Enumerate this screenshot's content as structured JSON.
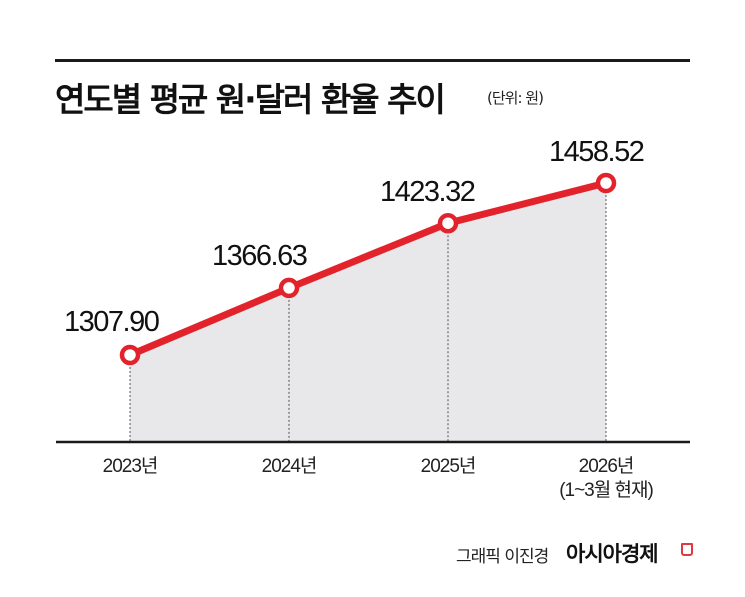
{
  "header": {
    "title": "연도별 평균 원·달러 환율 추이",
    "unit": "(단위: 원)"
  },
  "footer": {
    "credit": "그래픽 이진경",
    "brand": "아시아경제",
    "brand_mark_color": "#e0393e"
  },
  "colors": {
    "line": "#e3232b",
    "fill": "#e8e8ea",
    "axis": "#1a1a1a",
    "marker_fill": "#ffffff"
  },
  "labels": {
    "values": [
      "1307.90",
      "1366.63",
      "1423.32",
      "1458.52"
    ],
    "x": [
      {
        "line1": "2023년",
        "line2": ""
      },
      {
        "line1": "2024년",
        "line2": ""
      },
      {
        "line1": "2025년",
        "line2": ""
      },
      {
        "line1": "2026년",
        "line2": "(1~3월 현재)"
      }
    ]
  },
  "chart_data": {
    "type": "line",
    "title": "연도별 평균 원·달러 환율 추이",
    "subtitle": "(단위: 원)",
    "categories": [
      "2023년",
      "2024년",
      "2025년",
      "2026년 (1~3월 현재)"
    ],
    "series": [
      {
        "name": "평균 원·달러 환율",
        "values": [
          1307.9,
          1366.63,
          1423.32,
          1458.52
        ]
      }
    ],
    "xlabel": "",
    "ylabel": "원",
    "area_fill": true,
    "markers": "hollow-circle",
    "data_labels": true,
    "grid": false,
    "legend": "none",
    "y_axis_visible": false
  }
}
